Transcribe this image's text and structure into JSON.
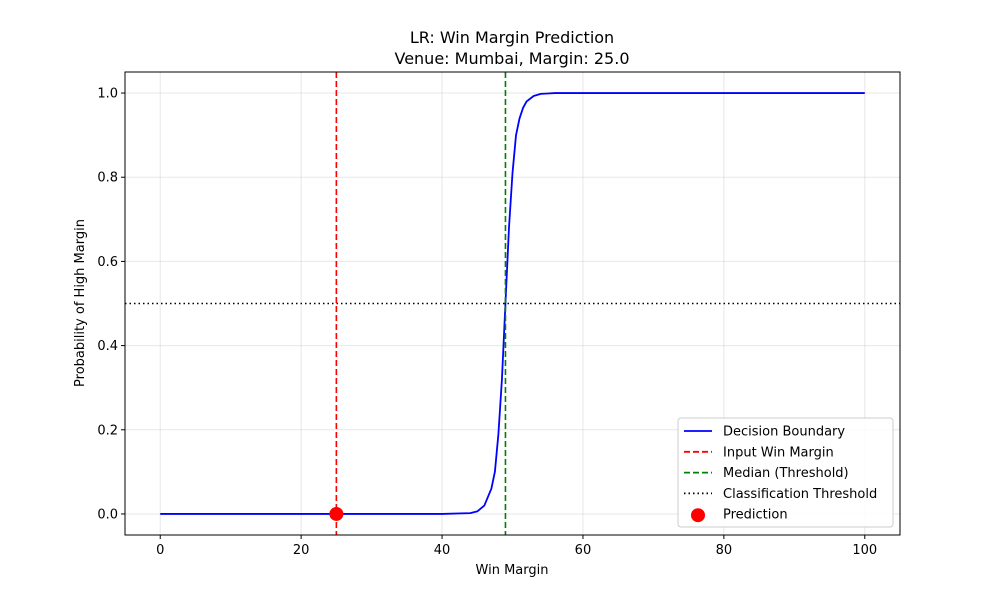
{
  "chart_data": {
    "type": "line",
    "title_line1": "LR: Win Margin Prediction",
    "title_line2": "Venue: Mumbai, Margin: 25.0",
    "xlabel": "Win Margin",
    "ylabel": "Probability of High Margin",
    "xlim": [
      -5,
      105
    ],
    "ylim": [
      -0.05,
      1.05
    ],
    "xticks": [
      0,
      20,
      40,
      60,
      80,
      100
    ],
    "yticks": [
      0.0,
      0.2,
      0.4,
      0.6,
      0.8,
      1.0
    ],
    "xtick_labels": [
      "0",
      "20",
      "40",
      "60",
      "80",
      "100"
    ],
    "ytick_labels": [
      "0.0",
      "0.2",
      "0.4",
      "0.6",
      "0.8",
      "1.0"
    ],
    "grid": true,
    "legend_position": "lower-right",
    "series": [
      {
        "name": "Decision Boundary",
        "color": "#0000ff",
        "style": "solid",
        "x": [
          0,
          10,
          20,
          30,
          40,
          44,
          45,
          46,
          47,
          47.5,
          48,
          48.5,
          49,
          49.5,
          50,
          50.5,
          51,
          51.5,
          52,
          53,
          54,
          55,
          56,
          60,
          70,
          80,
          90,
          100
        ],
        "y": [
          0.0,
          0.0,
          0.0,
          0.0,
          0.0,
          0.002,
          0.006,
          0.02,
          0.06,
          0.1,
          0.19,
          0.32,
          0.5,
          0.68,
          0.81,
          0.9,
          0.94,
          0.965,
          0.98,
          0.993,
          0.998,
          0.999,
          1.0,
          1.0,
          1.0,
          1.0,
          1.0,
          1.0
        ]
      }
    ],
    "vlines": [
      {
        "name": "Input Win Margin",
        "x": 25,
        "color": "#ff0000",
        "style": "dashed"
      },
      {
        "name": "Median (Threshold)",
        "x": 49,
        "color": "#008000",
        "style": "dashed"
      }
    ],
    "hlines": [
      {
        "name": "Classification Threshold",
        "y": 0.5,
        "color": "#000000",
        "style": "dotted"
      }
    ],
    "points": [
      {
        "name": "Prediction",
        "x": 25,
        "y": 0.0,
        "color": "#ff0000"
      }
    ],
    "legend": [
      {
        "label": "Decision Boundary",
        "kind": "line",
        "color": "#0000ff",
        "style": "solid"
      },
      {
        "label": "Input Win Margin",
        "kind": "line",
        "color": "#ff0000",
        "style": "dashed"
      },
      {
        "label": "Median (Threshold)",
        "kind": "line",
        "color": "#008000",
        "style": "dashed"
      },
      {
        "label": "Classification Threshold",
        "kind": "line",
        "color": "#000000",
        "style": "dotted"
      },
      {
        "label": "Prediction",
        "kind": "marker",
        "color": "#ff0000",
        "style": "dot"
      }
    ]
  }
}
